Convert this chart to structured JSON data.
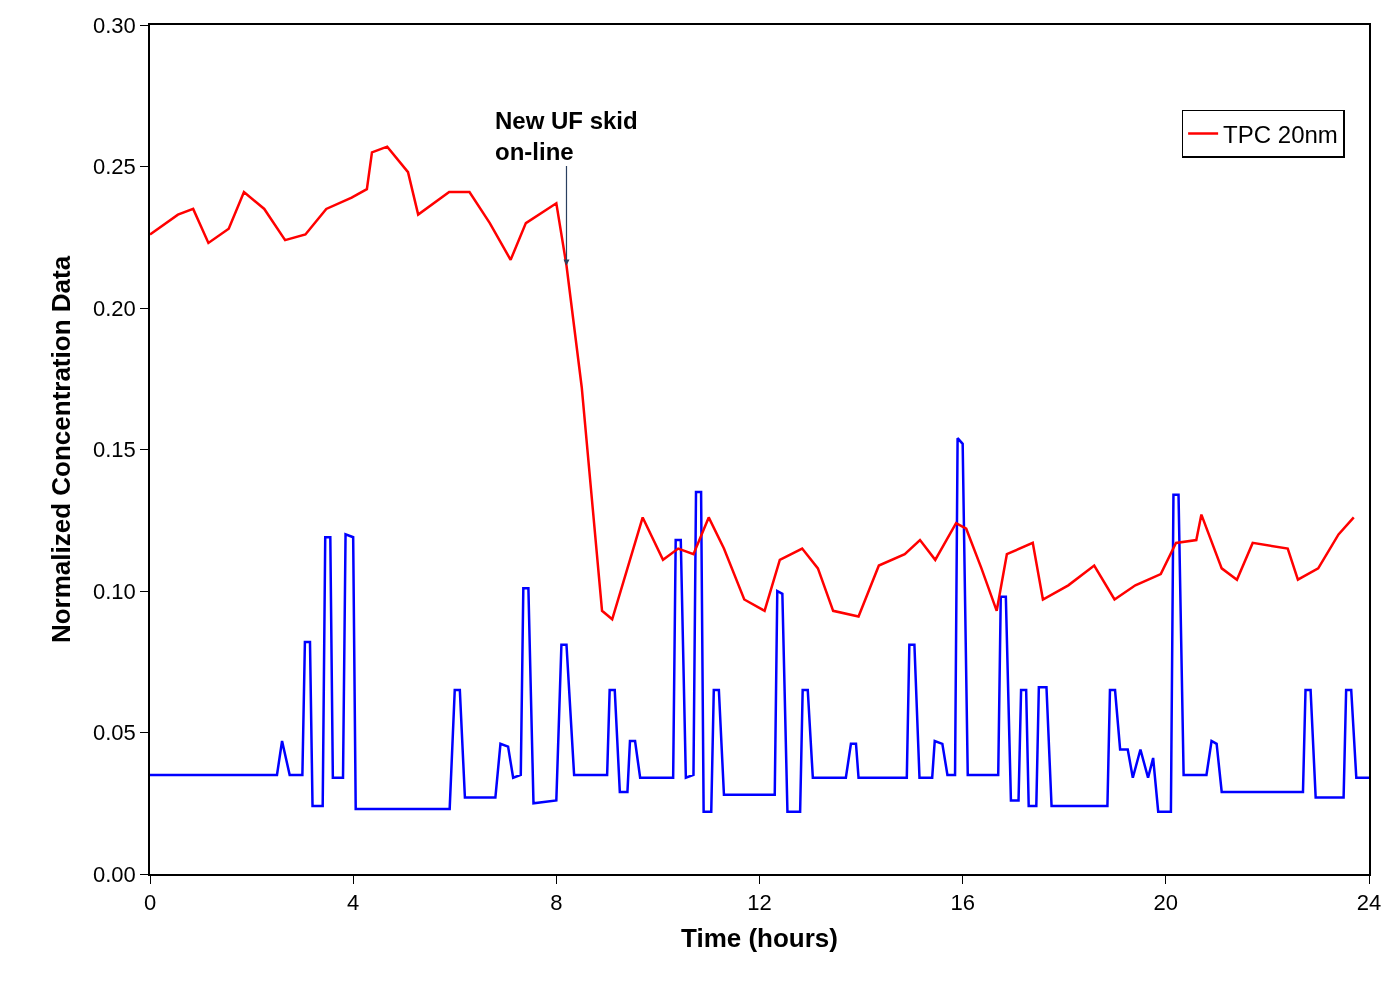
{
  "chart_data": {
    "type": "line",
    "xlabel": "Time (hours)",
    "ylabel": "Normalized Concentration Data",
    "annotations": [
      {
        "text": "New UF skid\non-line",
        "x": 8.2,
        "y": 0.215
      }
    ],
    "xlim": [
      0,
      24
    ],
    "xticks": [
      0,
      4,
      8,
      12,
      16,
      20,
      24
    ],
    "ylim": [
      0,
      0.3
    ],
    "yticks": [
      {
        "value": 0,
        "label": "0.00"
      },
      {
        "value": 0.05,
        "label": "0.05"
      },
      {
        "value": 0.1,
        "label": "0.10"
      },
      {
        "value": 0.15,
        "label": "0.15"
      },
      {
        "value": 0.2,
        "label": "0.20"
      },
      {
        "value": 0.25,
        "label": "0.25"
      },
      {
        "value": 0.3,
        "label": "0.30"
      }
    ],
    "legend": "top right",
    "marker": "none",
    "line_style": "solid",
    "series": [
      {
        "color": "#0000ff",
        "x": [
          0,
          2.5,
          2.6,
          2.75,
          3.0,
          3.05,
          3.15,
          3.2,
          3.4,
          3.45,
          3.55,
          3.6,
          3.8,
          3.85,
          4.0,
          4.05,
          5.0,
          5.9,
          6.0,
          6.1,
          6.2,
          6.8,
          6.9,
          7.05,
          7.15,
          7.3,
          7.35,
          7.45,
          7.55,
          8.0,
          8.1,
          8.2,
          8.35,
          9.0,
          9.05,
          9.15,
          9.25,
          9.4,
          9.45,
          9.55,
          9.65,
          10.3,
          10.35,
          10.45,
          10.55,
          10.7,
          10.75,
          10.85,
          10.9,
          11.05,
          11.1,
          11.2,
          11.3,
          12.3,
          12.35,
          12.45,
          12.55,
          12.8,
          12.85,
          12.95,
          13.05,
          13.7,
          13.8,
          13.9,
          13.95,
          14.9,
          14.95,
          15.05,
          15.15,
          15.4,
          15.45,
          15.6,
          15.7,
          15.85,
          15.9,
          16.0,
          16.1,
          16.7,
          16.75,
          16.85,
          16.95,
          17.1,
          17.15,
          17.25,
          17.3,
          17.45,
          17.5,
          17.65,
          17.75,
          18.85,
          18.9,
          19.0,
          19.1,
          19.25,
          19.35,
          19.5,
          19.65,
          19.75,
          19.85,
          20.1,
          20.15,
          20.25,
          20.35,
          20.8,
          20.9,
          21.0,
          21.1,
          22.7,
          22.75,
          22.85,
          22.95,
          23.5,
          23.55,
          23.65,
          23.75,
          24
        ],
        "values": [
          0.035,
          0.035,
          0.047,
          0.035,
          0.035,
          0.082,
          0.082,
          0.024,
          0.024,
          0.119,
          0.119,
          0.034,
          0.034,
          0.12,
          0.119,
          0.023,
          0.023,
          0.023,
          0.065,
          0.065,
          0.027,
          0.027,
          0.046,
          0.045,
          0.034,
          0.035,
          0.101,
          0.101,
          0.025,
          0.026,
          0.081,
          0.081,
          0.035,
          0.035,
          0.065,
          0.065,
          0.029,
          0.029,
          0.047,
          0.047,
          0.034,
          0.034,
          0.118,
          0.118,
          0.034,
          0.035,
          0.135,
          0.135,
          0.022,
          0.022,
          0.065,
          0.065,
          0.028,
          0.028,
          0.1,
          0.099,
          0.022,
          0.022,
          0.065,
          0.065,
          0.034,
          0.034,
          0.046,
          0.046,
          0.034,
          0.034,
          0.081,
          0.081,
          0.034,
          0.034,
          0.047,
          0.046,
          0.035,
          0.035,
          0.154,
          0.152,
          0.035,
          0.035,
          0.098,
          0.098,
          0.026,
          0.026,
          0.065,
          0.065,
          0.024,
          0.024,
          0.066,
          0.066,
          0.024,
          0.024,
          0.065,
          0.065,
          0.044,
          0.044,
          0.034,
          0.044,
          0.034,
          0.041,
          0.022,
          0.022,
          0.134,
          0.134,
          0.035,
          0.035,
          0.047,
          0.046,
          0.029,
          0.029,
          0.065,
          0.065,
          0.027,
          0.027,
          0.065,
          0.065,
          0.034,
          0.034
        ]
      },
      {
        "name": "TPC 20nm",
        "color": "#ff0000",
        "x": [
          0,
          0.55,
          0.85,
          1.15,
          1.55,
          1.85,
          2.25,
          2.66,
          3.06,
          3.47,
          3.97,
          4.27,
          4.37,
          4.67,
          5.08,
          5.28,
          5.89,
          6.29,
          6.69,
          7.1,
          7.4,
          8.0,
          8.2,
          8.5,
          8.9,
          9.1,
          9.4,
          9.7,
          10.1,
          10.4,
          10.7,
          11.0,
          11.3,
          11.7,
          12.1,
          12.4,
          12.84,
          13.15,
          13.45,
          13.95,
          14.35,
          14.86,
          15.16,
          15.46,
          15.87,
          16.07,
          16.37,
          16.67,
          16.87,
          17.38,
          17.58,
          18.08,
          18.59,
          18.99,
          19.4,
          19.9,
          20.2,
          20.6,
          20.7,
          21.1,
          21.4,
          21.71,
          22.4,
          22.6,
          23.0,
          23.4,
          23.7
        ],
        "values": [
          0.226,
          0.233,
          0.235,
          0.223,
          0.228,
          0.241,
          0.235,
          0.224,
          0.226,
          0.235,
          0.239,
          0.242,
          0.255,
          0.257,
          0.248,
          0.233,
          0.241,
          0.241,
          0.23,
          0.217,
          0.23,
          0.237,
          0.215,
          0.172,
          0.093,
          0.09,
          0.108,
          0.126,
          0.111,
          0.115,
          0.113,
          0.126,
          0.115,
          0.097,
          0.093,
          0.111,
          0.115,
          0.108,
          0.093,
          0.091,
          0.109,
          0.113,
          0.118,
          0.111,
          0.124,
          0.122,
          0.108,
          0.093,
          0.113,
          0.117,
          0.097,
          0.102,
          0.109,
          0.097,
          0.102,
          0.106,
          0.117,
          0.118,
          0.127,
          0.108,
          0.104,
          0.117,
          0.115,
          0.104,
          0.108,
          0.12,
          0.126
        ]
      }
    ]
  }
}
